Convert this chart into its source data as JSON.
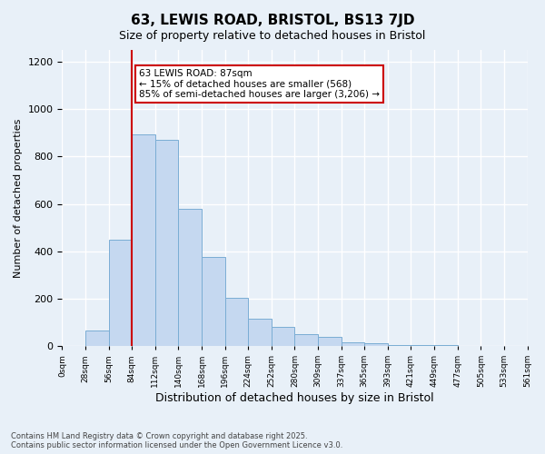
{
  "title": "63, LEWIS ROAD, BRISTOL, BS13 7JD",
  "subtitle": "Size of property relative to detached houses in Bristol",
  "xlabel": "Distribution of detached houses by size in Bristol",
  "ylabel": "Number of detached properties",
  "bar_color": "#c5d8f0",
  "bar_edge_color": "#7aadd4",
  "bg_color": "#e8f0f8",
  "grid_color": "#ffffff",
  "vline_color": "#cc0000",
  "vline_x": 3,
  "annotation_text": "63 LEWIS ROAD: 87sqm\n← 15% of detached houses are smaller (568)\n85% of semi-detached houses are larger (3,206) →",
  "annotation_box_color": "#ffffff",
  "annotation_box_edge": "#cc0000",
  "bins": [
    0,
    28,
    56,
    84,
    112,
    140,
    168,
    196,
    224,
    252,
    280,
    309,
    337,
    365,
    393,
    421,
    449,
    477,
    505,
    533,
    561
  ],
  "counts": [
    2,
    65,
    448,
    895,
    870,
    580,
    375,
    205,
    115,
    80,
    50,
    40,
    15,
    10,
    5,
    5,
    3,
    2,
    2,
    1
  ],
  "ylim": [
    0,
    1250
  ],
  "yticks": [
    0,
    200,
    400,
    600,
    800,
    1000,
    1200
  ],
  "footnote": "Contains HM Land Registry data © Crown copyright and database right 2025.\nContains public sector information licensed under the Open Government Licence v3.0.",
  "figsize": [
    6.0,
    5.0
  ],
  "dpi": 100
}
